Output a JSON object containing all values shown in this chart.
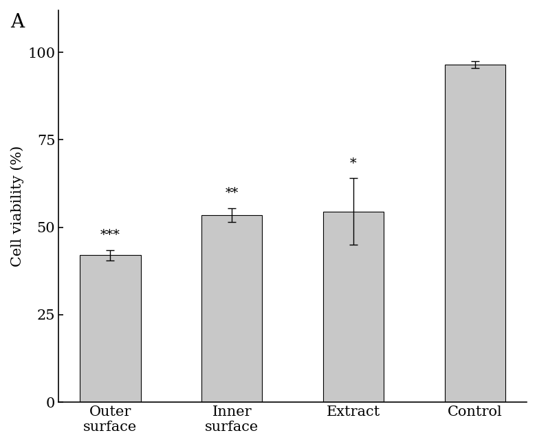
{
  "categories": [
    "Outer\nsurface",
    "Inner\nsurface",
    "Extract",
    "Control"
  ],
  "values": [
    42.0,
    53.5,
    54.5,
    96.5
  ],
  "errors": [
    1.5,
    2.0,
    9.5,
    1.0
  ],
  "significance": [
    "***",
    "**",
    "*",
    ""
  ],
  "bar_color": "#c8c8c8",
  "bar_edgecolor": "#000000",
  "ylabel": "Cell viability (%)",
  "ylim": [
    0,
    112
  ],
  "yticks": [
    0,
    25,
    50,
    75,
    100
  ],
  "panel_label": "A",
  "bar_width": 0.5,
  "label_fontsize": 15,
  "tick_fontsize": 15,
  "sig_fontsize": 14,
  "panel_fontsize": 20
}
